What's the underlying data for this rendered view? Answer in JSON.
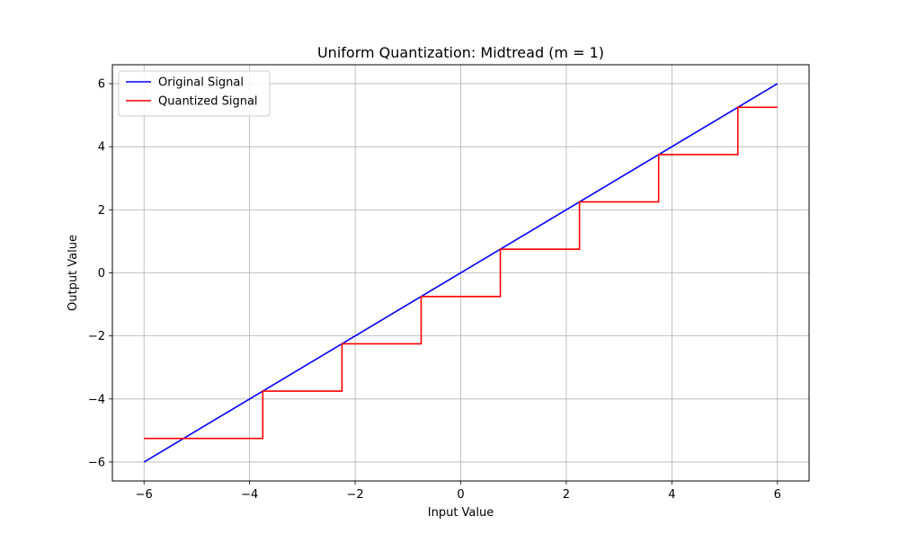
{
  "chart_data": {
    "type": "line",
    "title": "Uniform Quantization: Midtread (m = 1)",
    "xlabel": "Input Value",
    "ylabel": "Output Value",
    "xlim": [
      -6.6,
      6.6
    ],
    "ylim": [
      -6.6,
      6.6
    ],
    "x_ticks": [
      -6,
      -4,
      -2,
      0,
      2,
      4,
      6
    ],
    "y_ticks": [
      -6,
      -4,
      -2,
      0,
      2,
      4,
      6
    ],
    "x_tick_labels": [
      "−6",
      "−4",
      "−2",
      "0",
      "2",
      "4",
      "6"
    ],
    "y_tick_labels": [
      "−6",
      "−4",
      "−2",
      "0",
      "2",
      "4",
      "6"
    ],
    "grid": true,
    "legend_position": "top-left",
    "series": [
      {
        "name": "Original Signal",
        "color": "#0000ff",
        "x": [
          -6,
          6
        ],
        "y": [
          -6,
          6
        ]
      },
      {
        "name": "Quantized Signal",
        "color": "#ff0000",
        "x": [
          -6,
          -3.75,
          -3.75,
          -2.25,
          -2.25,
          -0.75,
          -0.75,
          0.75,
          0.75,
          2.25,
          2.25,
          3.75,
          3.75,
          5.25,
          5.25,
          6
        ],
        "y": [
          -5.25,
          -5.25,
          -3.75,
          -3.75,
          -2.25,
          -2.25,
          -0.75,
          -0.75,
          0.75,
          0.75,
          2.25,
          2.25,
          3.75,
          3.75,
          5.25,
          5.25
        ]
      }
    ]
  }
}
